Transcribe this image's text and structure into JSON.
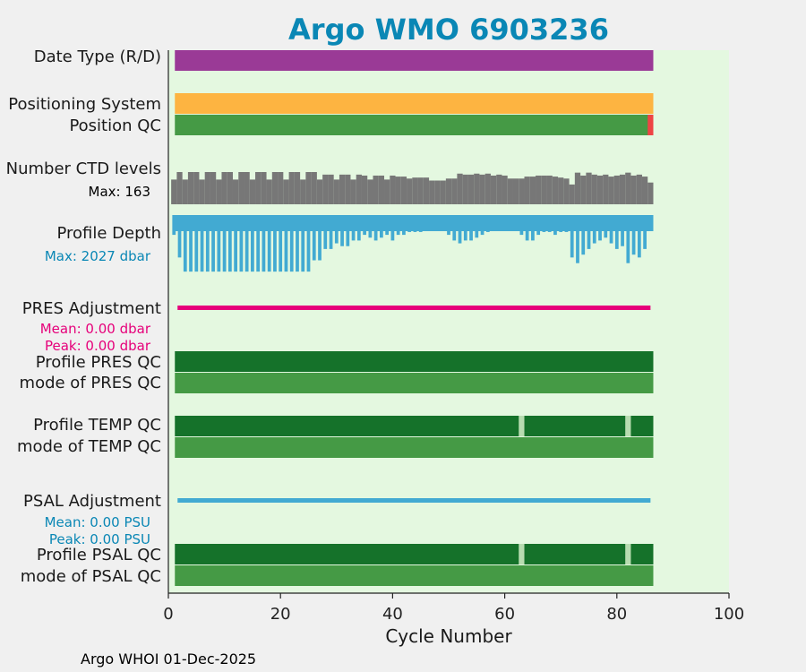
{
  "title": "Argo WMO 6903236",
  "footer": "Argo WHOI 01-Dec-2025",
  "colors": {
    "background": "#f0f0f0",
    "plot_bg": "#e4f8e0",
    "title": "#0a87b5",
    "date_type": "#9a3a96",
    "positioning": "#fdb441",
    "pos_qc_good": "#459a45",
    "pos_qc_bad": "#ee4444",
    "ctd_levels": "#777777",
    "profile_depth": "#42aad2",
    "pres_adjust": "#e6007a",
    "profile_qc_A": "#15722a",
    "mode_qc": "#459a45",
    "qc_gap": "#b7dcb0",
    "psal_adjust": "#42aad2"
  },
  "labels": {
    "date_type": "Date Type (R/D)",
    "positioning": "Positioning System",
    "position_qc": "Position QC",
    "ctd_levels": "Number CTD levels",
    "ctd_max": "Max: 163",
    "profile_depth": "Profile Depth",
    "depth_max": "Max: 2027 dbar",
    "pres_adjust": "PRES Adjustment",
    "pres_mean": "Mean: 0.00 dbar",
    "pres_peak": "Peak: 0.00 dbar",
    "profile_pres_qc": "Profile PRES QC",
    "mode_pres_qc": "mode of PRES QC",
    "profile_temp_qc": "Profile TEMP QC",
    "mode_temp_qc": "mode of TEMP QC",
    "psal_adjust": "PSAL Adjustment",
    "psal_mean": "Mean: 0.00 PSU",
    "psal_peak": "Peak: 0.00 PSU",
    "profile_psal_qc": "Profile PSAL QC",
    "mode_psal_qc": "mode of PSAL QC"
  },
  "chart_data": {
    "type": "bar",
    "xlabel": "Cycle Number",
    "xlim": [
      0,
      100
    ],
    "xticks": [
      "0",
      "20",
      "40",
      "60",
      "80",
      "100"
    ],
    "cycles": [
      1,
      86
    ],
    "position_qc_bad_cycles": [
      86
    ],
    "temp_qc_gap_cycles": [
      63,
      82
    ],
    "psal_qc_gap_cycles": [
      63,
      82
    ],
    "ctd_levels_max": 163,
    "ctd_levels": [
      125,
      163,
      125,
      163,
      163,
      125,
      163,
      163,
      125,
      163,
      163,
      125,
      163,
      163,
      125,
      163,
      163,
      125,
      163,
      163,
      125,
      163,
      163,
      125,
      163,
      163,
      125,
      150,
      150,
      125,
      150,
      150,
      125,
      150,
      145,
      125,
      145,
      145,
      125,
      145,
      140,
      140,
      130,
      135,
      135,
      135,
      120,
      120,
      120,
      130,
      130,
      155,
      150,
      150,
      155,
      150,
      155,
      145,
      150,
      145,
      130,
      130,
      130,
      140,
      140,
      145,
      145,
      145,
      140,
      135,
      130,
      100,
      160,
      145,
      160,
      150,
      145,
      150,
      140,
      145,
      150,
      160,
      145,
      150,
      140,
      110
    ],
    "depth_max": 2027,
    "profile_depth": [
      700,
      1500,
      2000,
      2000,
      2000,
      2000,
      2000,
      2000,
      2000,
      2000,
      2000,
      2000,
      2000,
      2000,
      2000,
      2000,
      2000,
      2000,
      2000,
      2000,
      2000,
      2000,
      2000,
      2000,
      2000,
      1600,
      1600,
      1200,
      1200,
      1000,
      1100,
      1100,
      900,
      900,
      700,
      800,
      900,
      800,
      700,
      900,
      700,
      700,
      600,
      600,
      600,
      200,
      200,
      200,
      300,
      700,
      900,
      1000,
      900,
      900,
      800,
      700,
      600,
      500,
      400,
      300,
      400,
      500,
      700,
      900,
      900,
      700,
      600,
      600,
      700,
      600,
      600,
      1500,
      1700,
      1400,
      1200,
      1000,
      900,
      800,
      1000,
      1200,
      1100,
      1700,
      1400,
      1500,
      1200,
      100
    ]
  }
}
